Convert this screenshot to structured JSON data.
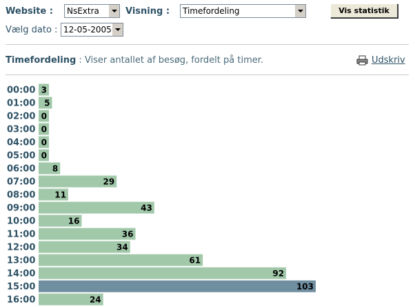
{
  "form": {
    "website_label": "Website :",
    "website_value": "NsExtra",
    "visning_label": "Visning :",
    "visning_value": "Timefordeling",
    "button": "Vis statistik",
    "date_label": "Vælg dato :",
    "date_value": "12-05-2005"
  },
  "header": {
    "title": "Timefordeling",
    "description": ": Viser antallet af besøg, fordelt på timer.",
    "print_link": "Udskriv"
  },
  "chart_data": {
    "type": "bar",
    "orientation": "horizontal",
    "categories": [
      "00:00",
      "01:00",
      "02:00",
      "03:00",
      "04:00",
      "05:00",
      "06:00",
      "07:00",
      "08:00",
      "09:00",
      "10:00",
      "11:00",
      "12:00",
      "13:00",
      "14:00",
      "15:00",
      "16:00"
    ],
    "values": [
      3,
      5,
      0,
      0,
      0,
      0,
      8,
      29,
      11,
      43,
      16,
      36,
      34,
      61,
      92,
      103,
      24
    ],
    "colors": [
      "#a2c8aa",
      "#a2c8aa",
      "#a2c8aa",
      "#a2c8aa",
      "#a2c8aa",
      "#a2c8aa",
      "#a2c8aa",
      "#a2c8aa",
      "#a2c8aa",
      "#a2c8aa",
      "#a2c8aa",
      "#a2c8aa",
      "#a2c8aa",
      "#a2c8aa",
      "#a2c8aa",
      "#6f8ea0",
      "#a2c8aa"
    ]
  }
}
